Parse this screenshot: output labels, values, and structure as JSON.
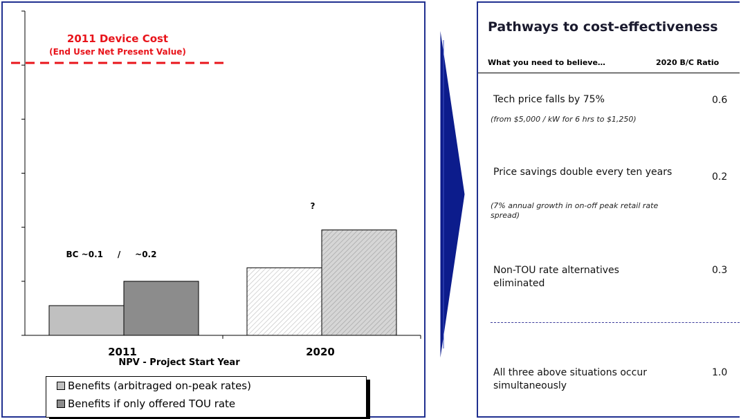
{
  "left_panel": {
    "device_cost_title": "2011 Device Cost",
    "device_cost_subtitle": "(End User Net Present Value)",
    "annotation_2011": "BC ~0.1     /     ~0.2",
    "annotation_2020": "?",
    "legend": [
      {
        "label": "Benefits (arbitraged on-peak rates)",
        "swatch": "light-gray"
      },
      {
        "label": "Benefits if only offered TOU rate",
        "swatch": "dark-gray"
      }
    ]
  },
  "chart_data": {
    "type": "bar",
    "title": "",
    "xlabel": "NPV - Project Start Year",
    "ylabel": "",
    "categories": [
      "2011",
      "2020"
    ],
    "ylim": [
      0,
      6
    ],
    "y_ticks_labeled": false,
    "series": [
      {
        "name": "Benefits (arbitraged on-peak rates)",
        "values": [
          0.55,
          1.25
        ],
        "colors": [
          "#c0c0c0",
          "#ffffff"
        ],
        "hatched": [
          false,
          true
        ]
      },
      {
        "name": "Benefits if only offered TOU rate",
        "values": [
          1.0,
          1.95
        ],
        "colors": [
          "#8c8c8c",
          "#c4c4c4"
        ],
        "hatched": [
          false,
          true
        ]
      }
    ],
    "reference_lines": [
      {
        "label": "2011 Device Cost",
        "value": 5.0,
        "style": "dashed",
        "color": "#e8141b"
      }
    ]
  },
  "right_panel": {
    "title": "Pathways to cost-effectiveness",
    "col_believe": "What you need to believe…",
    "col_ratio": "2020 B/C Ratio",
    "rows": [
      {
        "text": "Tech price falls by 75%",
        "note": "(from $5,000 / kW for 6 hrs to $1,250)",
        "ratio": "0.6"
      },
      {
        "text": "Price savings double every ten years",
        "note": "(7% annual growth in on-off peak retail rate spread)",
        "ratio": "0.2"
      },
      {
        "text": "Non-TOU rate alternatives eliminated",
        "note": "",
        "ratio": "0.3"
      }
    ],
    "combined": {
      "text": "All three above situations occur simultaneously",
      "ratio": "1.0"
    }
  },
  "colors": {
    "panel_border": "#1f2f8f",
    "arrow": "#0c1c8c",
    "device_cost": "#e8141b"
  }
}
